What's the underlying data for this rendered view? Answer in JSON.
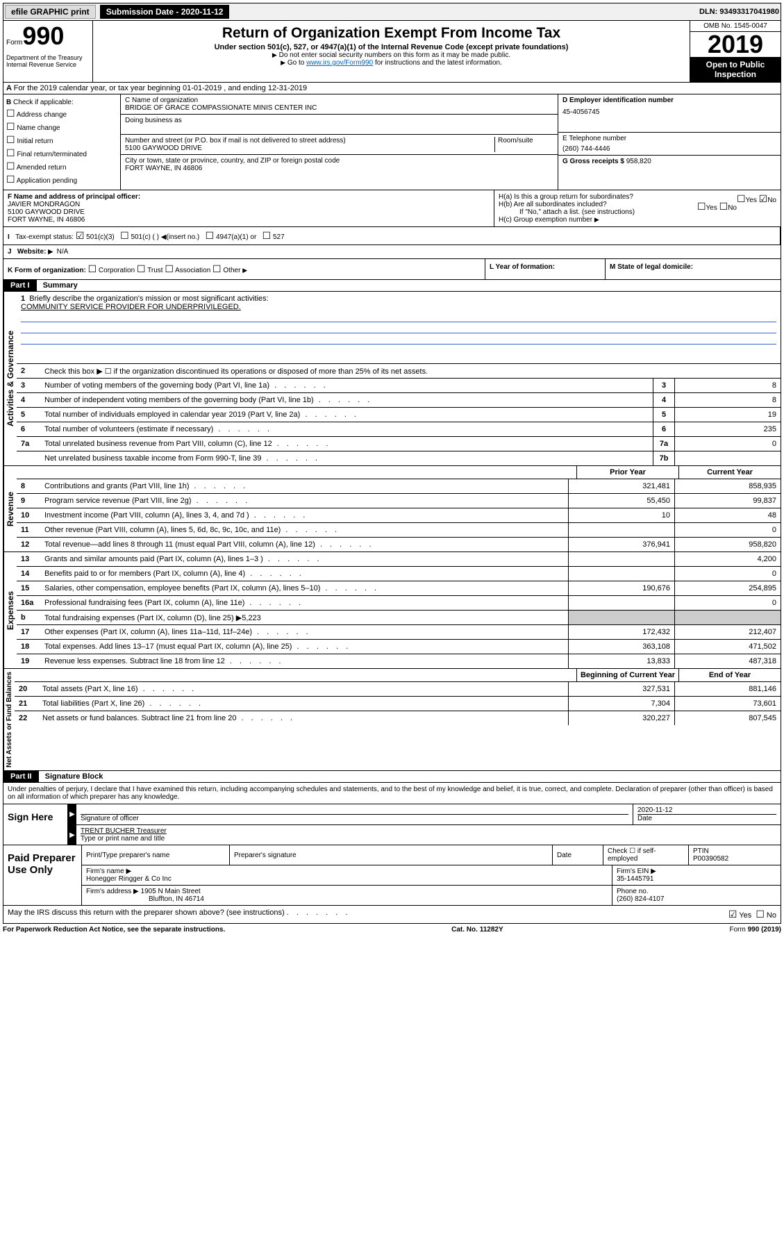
{
  "topbar": {
    "efile": "efile GRAPHIC print",
    "submission_label": "Submission Date - 2020-11-12",
    "dln_label": "DLN: 93493317041980"
  },
  "header": {
    "form_prefix": "Form",
    "form_number": "990",
    "dept": "Department of the Treasury\nInternal Revenue Service",
    "title": "Return of Organization Exempt From Income Tax",
    "subtitle": "Under section 501(c), 527, or 4947(a)(1) of the Internal Revenue Code (except private foundations)",
    "note1": "Do not enter social security numbers on this form as it may be made public.",
    "note2_pre": "Go to ",
    "note2_link": "www.irs.gov/Form990",
    "note2_post": " for instructions and the latest information.",
    "omb": "OMB No. 1545-0047",
    "year": "2019",
    "open": "Open to Public Inspection"
  },
  "period": "For the 2019 calendar year, or tax year beginning 01-01-2019   , and ending 12-31-2019",
  "check": {
    "label": "Check if applicable:",
    "items": [
      "Address change",
      "Name change",
      "Initial return",
      "Final return/terminated",
      "Amended return",
      "Application pending"
    ]
  },
  "org": {
    "name_label": "C Name of organization",
    "name": "BRIDGE OF GRACE COMPASSIONATE MINIS CENTER INC",
    "dba_label": "Doing business as",
    "addr_label": "Number and street (or P.O. box if mail is not delivered to street address)",
    "room_label": "Room/suite",
    "addr": "5100 GAYWOOD DRIVE",
    "city_label": "City or town, state or province, country, and ZIP or foreign postal code",
    "city": "FORT WAYNE, IN  46806"
  },
  "ein": {
    "label": "D Employer identification number",
    "value": "45-4056745"
  },
  "phone": {
    "label": "E Telephone number",
    "value": "(260) 744-4446"
  },
  "gross": {
    "label": "G Gross receipts $",
    "value": "958,820"
  },
  "officer": {
    "label": "F  Name and address of principal officer:",
    "name": "JAVIER MONDRAGON",
    "addr1": "5100 GAYWOOD DRIVE",
    "addr2": "FORT WAYNE, IN  46806"
  },
  "group": {
    "ha": "H(a)  Is this a group return for subordinates?",
    "hb": "H(b)  Are all subordinates included?",
    "hb_note": "If \"No,\" attach a list. (see instructions)",
    "hc": "H(c)  Group exemption number"
  },
  "status": {
    "label": "Tax-exempt status:",
    "opt1": "501(c)(3)",
    "opt2": "501(c) (  )",
    "opt2_note": "(insert no.)",
    "opt3": "4947(a)(1) or",
    "opt4": "527"
  },
  "website": {
    "label": "Website:",
    "value": "N/A"
  },
  "form_org": {
    "label": "K Form of organization:",
    "opts": [
      "Corporation",
      "Trust",
      "Association",
      "Other"
    ],
    "year_label": "L Year of formation:",
    "state_label": "M State of legal domicile:"
  },
  "part1": {
    "header": "Part I",
    "title": "Summary",
    "briefly_label": "Briefly describe the organization's mission or most significant activities:",
    "briefly_value": "COMMUNITY SERVICE PROVIDER FOR UNDERPRIVILEGED.",
    "line2": "Check this box ▶ ☐  if the organization discontinued its operations or disposed of more than 25% of its net assets.",
    "labels": {
      "gov": "Activities & Governance",
      "rev": "Revenue",
      "exp": "Expenses",
      "net": "Net Assets or Fund Balances"
    },
    "lines_gov": [
      {
        "n": "3",
        "d": "Number of voting members of the governing body (Part VI, line 1a)",
        "box": "3",
        "v": "8"
      },
      {
        "n": "4",
        "d": "Number of independent voting members of the governing body (Part VI, line 1b)",
        "box": "4",
        "v": "8"
      },
      {
        "n": "5",
        "d": "Total number of individuals employed in calendar year 2019 (Part V, line 2a)",
        "box": "5",
        "v": "19"
      },
      {
        "n": "6",
        "d": "Total number of volunteers (estimate if necessary)",
        "box": "6",
        "v": "235"
      },
      {
        "n": "7a",
        "d": "Total unrelated business revenue from Part VIII, column (C), line 12",
        "box": "7a",
        "v": "0"
      },
      {
        "n": "",
        "d": "Net unrelated business taxable income from Form 990-T, line 39",
        "box": "7b",
        "v": ""
      }
    ],
    "col_prior": "Prior Year",
    "col_current": "Current Year",
    "lines_rev": [
      {
        "n": "8",
        "d": "Contributions and grants (Part VIII, line 1h)",
        "p": "321,481",
        "c": "858,935"
      },
      {
        "n": "9",
        "d": "Program service revenue (Part VIII, line 2g)",
        "p": "55,450",
        "c": "99,837"
      },
      {
        "n": "10",
        "d": "Investment income (Part VIII, column (A), lines 3, 4, and 7d )",
        "p": "10",
        "c": "48"
      },
      {
        "n": "11",
        "d": "Other revenue (Part VIII, column (A), lines 5, 6d, 8c, 9c, 10c, and 11e)",
        "p": "",
        "c": "0"
      },
      {
        "n": "12",
        "d": "Total revenue—add lines 8 through 11 (must equal Part VIII, column (A), line 12)",
        "p": "376,941",
        "c": "958,820"
      }
    ],
    "lines_exp": [
      {
        "n": "13",
        "d": "Grants and similar amounts paid (Part IX, column (A), lines 1–3 )",
        "p": "",
        "c": "4,200"
      },
      {
        "n": "14",
        "d": "Benefits paid to or for members (Part IX, column (A), line 4)",
        "p": "",
        "c": "0"
      },
      {
        "n": "15",
        "d": "Salaries, other compensation, employee benefits (Part IX, column (A), lines 5–10)",
        "p": "190,676",
        "c": "254,895"
      },
      {
        "n": "16a",
        "d": "Professional fundraising fees (Part IX, column (A), line 11e)",
        "p": "",
        "c": "0"
      },
      {
        "n": "b",
        "d": "Total fundraising expenses (Part IX, column (D), line 25) ▶5,223",
        "p": null,
        "c": null
      },
      {
        "n": "17",
        "d": "Other expenses (Part IX, column (A), lines 11a–11d, 11f–24e)",
        "p": "172,432",
        "c": "212,407"
      },
      {
        "n": "18",
        "d": "Total expenses. Add lines 13–17 (must equal Part IX, column (A), line 25)",
        "p": "363,108",
        "c": "471,502"
      },
      {
        "n": "19",
        "d": "Revenue less expenses. Subtract line 18 from line 12",
        "p": "13,833",
        "c": "487,318"
      }
    ],
    "col_begin": "Beginning of Current Year",
    "col_end": "End of Year",
    "lines_net": [
      {
        "n": "20",
        "d": "Total assets (Part X, line 16)",
        "p": "327,531",
        "c": "881,146"
      },
      {
        "n": "21",
        "d": "Total liabilities (Part X, line 26)",
        "p": "7,304",
        "c": "73,601"
      },
      {
        "n": "22",
        "d": "Net assets or fund balances. Subtract line 21 from line 20",
        "p": "320,227",
        "c": "807,545"
      }
    ]
  },
  "part2": {
    "header": "Part II",
    "title": "Signature Block",
    "intro": "Under penalties of perjury, I declare that I have examined this return, including accompanying schedules and statements, and to the best of my knowledge and belief, it is true, correct, and complete. Declaration of preparer (other than officer) is based on all information of which preparer has any knowledge."
  },
  "sign": {
    "label": "Sign Here",
    "sig_label": "Signature of officer",
    "date": "2020-11-12",
    "date_label": "Date",
    "name": "TRENT BUCHER  Treasurer",
    "name_label": "Type or print name and title"
  },
  "paid": {
    "label": "Paid Preparer Use Only",
    "col_name": "Print/Type preparer's name",
    "col_sig": "Preparer's signature",
    "col_date": "Date",
    "col_check": "Check ☐ if self-employed",
    "col_ptin_label": "PTIN",
    "col_ptin": "P00390582",
    "firm_name_label": "Firm's name    ▶",
    "firm_name": "Honegger Ringger & Co Inc",
    "firm_ein_label": "Firm's EIN ▶",
    "firm_ein": "35-1445791",
    "firm_addr_label": "Firm's address ▶",
    "firm_addr1": "1905 N Main Street",
    "firm_addr2": "Bluffton, IN  46714",
    "firm_phone_label": "Phone no.",
    "firm_phone": "(260) 824-4107"
  },
  "discuss": "May the IRS discuss this return with the preparer shown above? (see instructions)",
  "footer": {
    "left": "For Paperwork Reduction Act Notice, see the separate instructions.",
    "mid": "Cat. No. 11282Y",
    "right": "Form 990 (2019)"
  }
}
